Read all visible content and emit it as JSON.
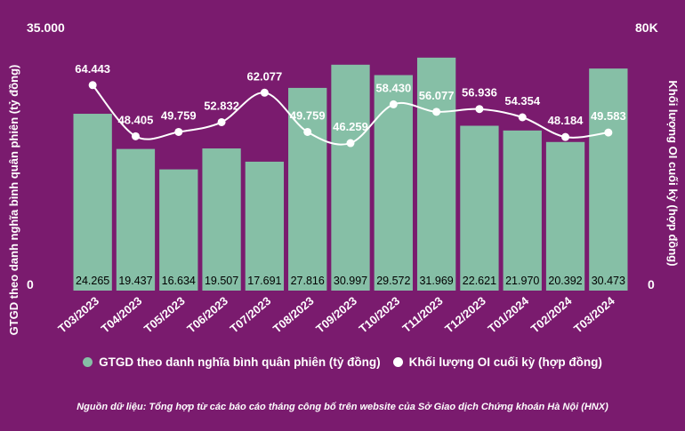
{
  "chart_data": {
    "type": "bar",
    "categories": [
      "T03/2023",
      "T04/2023",
      "T05/2023",
      "T06/2023",
      "T07/2023",
      "T08/2023",
      "T09/2023",
      "T10/2023",
      "T11/2023",
      "T12/2023",
      "T01/2024",
      "T02/2024",
      "T03/2024"
    ],
    "series": [
      {
        "name": "GTGD theo danh nghĩa bình quân phiên (tỷ đồng)",
        "type": "bar",
        "axis": "left",
        "values": [
          24265,
          19437,
          16634,
          19507,
          17691,
          27816,
          30997,
          29572,
          31969,
          22621,
          21970,
          20392,
          30473
        ],
        "labels": [
          "24.265",
          "19.437",
          "16.634",
          "19.507",
          "17.691",
          "27.816",
          "30.997",
          "29.572",
          "31.969",
          "22.621",
          "21.970",
          "20.392",
          "30.473"
        ],
        "color": "#86bfa6"
      },
      {
        "name": "Khối lượng OI cuối kỳ (hợp đồng)",
        "type": "line",
        "axis": "right",
        "values": [
          64443,
          48405,
          49759,
          52832,
          62077,
          49759,
          46259,
          58430,
          56077,
          56936,
          54354,
          48184,
          49583
        ],
        "labels": [
          "64.443",
          "48.405",
          "49.759",
          "52.832",
          "62.077",
          "49.759",
          "46.259",
          "58.430",
          "56.077",
          "56.936",
          "54.354",
          "48.184",
          "49.583"
        ],
        "color": "#ffffff"
      }
    ],
    "left_axis": {
      "label": "GTGD theo danh nghĩa bình quân phiên (tỷ đồng)",
      "max_label": "35.000",
      "min_label": "0",
      "range": [
        0,
        35000
      ]
    },
    "right_axis": {
      "label": "Khối lượng OI cuối kỳ (hợp đồng)",
      "max_label": "80K",
      "min_label": "0",
      "range": [
        0,
        80000
      ]
    },
    "legend_position": "bottom",
    "grid": false
  },
  "legend": {
    "bar_label": "GTGD theo danh nghĩa bình quân phiên (tỷ đồng)",
    "line_label": "Khối lượng OI cuối kỳ (hợp đồng)"
  },
  "source": "Nguồn dữ liệu: Tổng hợp từ các báo cáo tháng công bố trên website của Sở Giao dịch Chứng khoán Hà Nội (HNX)",
  "colors": {
    "background": "#7a1b6e",
    "bar": "#86bfa6",
    "line": "#ffffff",
    "text": "#ffffff",
    "bar_label": "#000000"
  }
}
